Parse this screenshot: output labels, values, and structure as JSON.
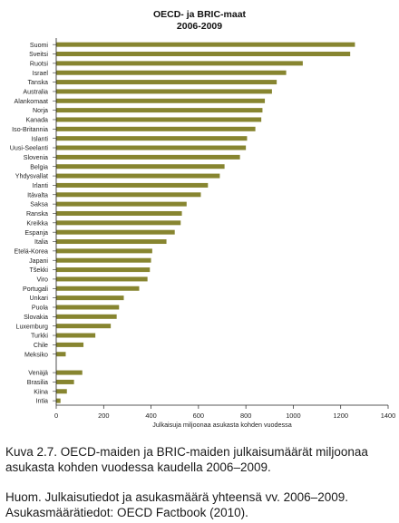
{
  "chart_data": {
    "type": "bar",
    "orientation": "horizontal",
    "title": "OECD- ja BRIC-maat",
    "subtitle": "2006-2009",
    "xlabel": "Julkaisuja miljoonaa asukasta kohden vuodessa",
    "ylabel": "",
    "xlim": [
      0,
      1400
    ],
    "xticks": [
      0,
      200,
      400,
      600,
      800,
      1000,
      1200,
      1400
    ],
    "grid": false,
    "bar_color": "#878530",
    "categories": [
      "Suomi",
      "Sveitsi",
      "Ruotsi",
      "Israel",
      "Tanska",
      "Australia",
      "Alankomaat",
      "Norja",
      "Kanada",
      "Iso-Britannia",
      "Islanti",
      "Uusi-Seelanti",
      "Slovenia",
      "Belgia",
      "Yhdysvallat",
      "Irlanti",
      "Itävalta",
      "Saksa",
      "Ranska",
      "Kreikka",
      "Espanja",
      "Italia",
      "Etelä-Korea",
      "Japani",
      "Tšekki",
      "Viro",
      "Portugali",
      "Unkari",
      "Puola",
      "Slovakia",
      "Luxemburg",
      "Turkki",
      "Chile",
      "Meksiko",
      "Venäjä",
      "Brasilia",
      "Kiina",
      "Intia"
    ],
    "values": [
      1260,
      1240,
      1040,
      970,
      930,
      910,
      880,
      870,
      865,
      840,
      805,
      800,
      775,
      710,
      690,
      640,
      610,
      550,
      530,
      525,
      500,
      465,
      405,
      400,
      395,
      385,
      350,
      285,
      265,
      255,
      230,
      165,
      115,
      40,
      110,
      75,
      45,
      18
    ],
    "groups": [
      {
        "name": "OECD",
        "count": 34
      },
      {
        "name": "BRIC",
        "count": 4
      }
    ]
  },
  "caption": {
    "line1": "Kuva 2.7. OECD-maiden ja BRIC-maiden julkaisumäärät miljoonaa",
    "line2": "asukasta kohden vuodessa kaudella 2006–2009.",
    "line3": "Huom. Julkaisutiedot ja asukasmäärä yhteensä vv. 2006–2009.",
    "line4": "Asukasmäärätiedot: OECD Factbook (2010)."
  }
}
